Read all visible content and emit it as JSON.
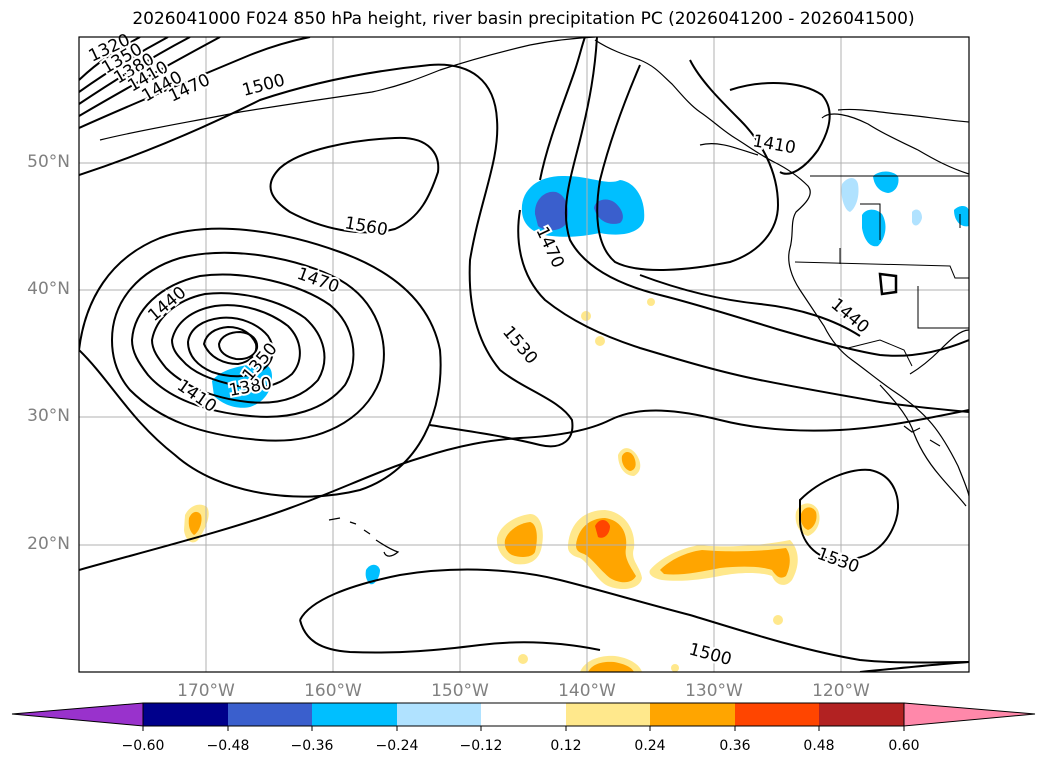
{
  "title": "2026041000 F024 850 hPa height, river basin precipitation PC (2026041200 - 2026041500)",
  "latitude_labels": [
    "50°N",
    "40°N",
    "30°N",
    "20°N"
  ],
  "longitude_labels": [
    "170°W",
    "160°W",
    "150°W",
    "140°W",
    "130°W",
    "120°W"
  ],
  "contour_labels": [
    "1320",
    "1350",
    "1380",
    "1410",
    "1440",
    "1470",
    "1500",
    "1560",
    "1470",
    "1530",
    "1410",
    "1440",
    "1530",
    "1500",
    "1440",
    "1470",
    "1410",
    "1380",
    "1350"
  ],
  "colorbar": {
    "tick_labels": [
      "−0.60",
      "−0.48",
      "−0.36",
      "−0.24",
      "−0.12",
      "0.12",
      "0.24",
      "0.36",
      "0.48",
      "0.60"
    ],
    "colors": [
      "#9932cc",
      "#00008b",
      "#3a5fcd",
      "#00bfff",
      "#b0e2ff",
      "#ffffff",
      "#ffe88c",
      "#ffa500",
      "#ff4500",
      "#b22222",
      "#ff88aa"
    ]
  }
}
